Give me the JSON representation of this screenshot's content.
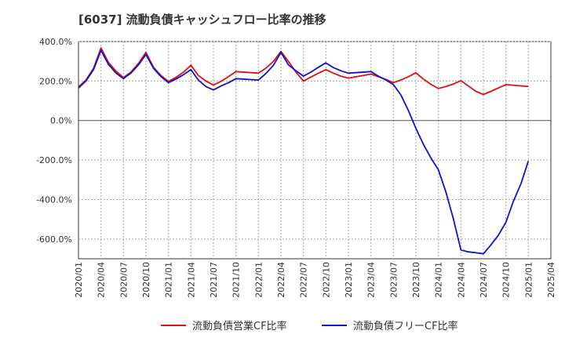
{
  "chart_data": {
    "type": "line",
    "title": "[6037]  流動負債キャッシュフロー比率の推移",
    "xlabel": "",
    "ylabel": "",
    "ylim": [
      -700,
      400
    ],
    "y_ticks": [
      400,
      200,
      0,
      -200,
      -400,
      -600
    ],
    "y_tick_labels": [
      "400.0%",
      "200.0%",
      "0.0%",
      "-200.0%",
      "-400.0%",
      "-600.0%"
    ],
    "x_tick_labels": [
      "2020/01",
      "2020/04",
      "2020/07",
      "2020/10",
      "2021/01",
      "2021/04",
      "2021/07",
      "2021/10",
      "2022/01",
      "2022/04",
      "2022/07",
      "2022/10",
      "2023/01",
      "2023/04",
      "2023/07",
      "2023/10",
      "2024/01",
      "2024/04",
      "2024/07",
      "2024/10",
      "2025/01",
      "2025/04"
    ],
    "grid": true,
    "legend_position": "bottom",
    "series": [
      {
        "name": "流動負債営業CF比率",
        "color": "#dd1111",
        "points": [
          [
            0,
            170
          ],
          [
            0.33,
            205
          ],
          [
            0.67,
            265
          ],
          [
            1,
            368
          ],
          [
            1.33,
            295
          ],
          [
            1.67,
            250
          ],
          [
            2,
            218
          ],
          [
            2.33,
            245
          ],
          [
            2.67,
            290
          ],
          [
            3,
            345
          ],
          [
            3.33,
            270
          ],
          [
            3.67,
            228
          ],
          [
            4,
            198
          ],
          [
            4.33,
            218
          ],
          [
            4.67,
            245
          ],
          [
            5,
            280
          ],
          [
            5.33,
            228
          ],
          [
            5.67,
            200
          ],
          [
            6,
            180
          ],
          [
            6.33,
            198
          ],
          [
            6.67,
            222
          ],
          [
            7,
            248
          ],
          [
            8,
            240
          ],
          [
            8.33,
            265
          ],
          [
            8.67,
            300
          ],
          [
            9,
            350
          ],
          [
            9.33,
            300
          ],
          [
            9.67,
            245
          ],
          [
            10,
            200
          ],
          [
            10.33,
            220
          ],
          [
            10.67,
            240
          ],
          [
            11,
            258
          ],
          [
            11.33,
            240
          ],
          [
            11.67,
            225
          ],
          [
            12,
            215
          ],
          [
            13,
            235
          ],
          [
            13.33,
            222
          ],
          [
            13.67,
            208
          ],
          [
            14,
            192
          ],
          [
            14.33,
            205
          ],
          [
            14.67,
            222
          ],
          [
            15,
            242
          ],
          [
            15.33,
            210
          ],
          [
            15.67,
            183
          ],
          [
            16,
            162
          ],
          [
            16.33,
            172
          ],
          [
            16.67,
            185
          ],
          [
            17,
            202
          ],
          [
            17.33,
            175
          ],
          [
            17.67,
            148
          ],
          [
            18,
            132
          ],
          [
            18.33,
            148
          ],
          [
            18.67,
            165
          ],
          [
            19,
            182
          ],
          [
            20,
            172
          ]
        ]
      },
      {
        "name": "流動負債フリーCF比率",
        "color": "#1111cc",
        "points": [
          [
            0,
            165
          ],
          [
            0.33,
            200
          ],
          [
            0.67,
            258
          ],
          [
            1,
            355
          ],
          [
            1.33,
            285
          ],
          [
            1.67,
            240
          ],
          [
            2,
            212
          ],
          [
            2.33,
            240
          ],
          [
            2.67,
            282
          ],
          [
            3,
            335
          ],
          [
            3.33,
            265
          ],
          [
            3.67,
            222
          ],
          [
            4,
            192
          ],
          [
            4.33,
            210
          ],
          [
            4.67,
            232
          ],
          [
            5,
            258
          ],
          [
            5.33,
            205
          ],
          [
            5.67,
            172
          ],
          [
            6,
            155
          ],
          [
            6.33,
            175
          ],
          [
            6.67,
            192
          ],
          [
            7,
            212
          ],
          [
            8,
            205
          ],
          [
            8.33,
            238
          ],
          [
            8.67,
            280
          ],
          [
            9,
            345
          ],
          [
            9.33,
            282
          ],
          [
            9.67,
            252
          ],
          [
            10,
            225
          ],
          [
            10.33,
            245
          ],
          [
            10.67,
            270
          ],
          [
            11,
            292
          ],
          [
            11.33,
            268
          ],
          [
            11.67,
            252
          ],
          [
            12,
            240
          ],
          [
            13,
            248
          ],
          [
            13.33,
            225
          ],
          [
            13.67,
            205
          ],
          [
            14,
            182
          ],
          [
            14.33,
            130
          ],
          [
            14.67,
            50
          ],
          [
            15,
            -40
          ],
          [
            15.33,
            -120
          ],
          [
            15.67,
            -190
          ],
          [
            16,
            -250
          ],
          [
            16.33,
            -360
          ],
          [
            16.67,
            -500
          ],
          [
            17,
            -655
          ],
          [
            17.33,
            -665
          ],
          [
            17.67,
            -670
          ],
          [
            18,
            -675
          ],
          [
            18.33,
            -630
          ],
          [
            18.67,
            -580
          ],
          [
            19,
            -515
          ],
          [
            19.33,
            -410
          ],
          [
            19.67,
            -320
          ],
          [
            20,
            -205
          ]
        ]
      }
    ]
  }
}
